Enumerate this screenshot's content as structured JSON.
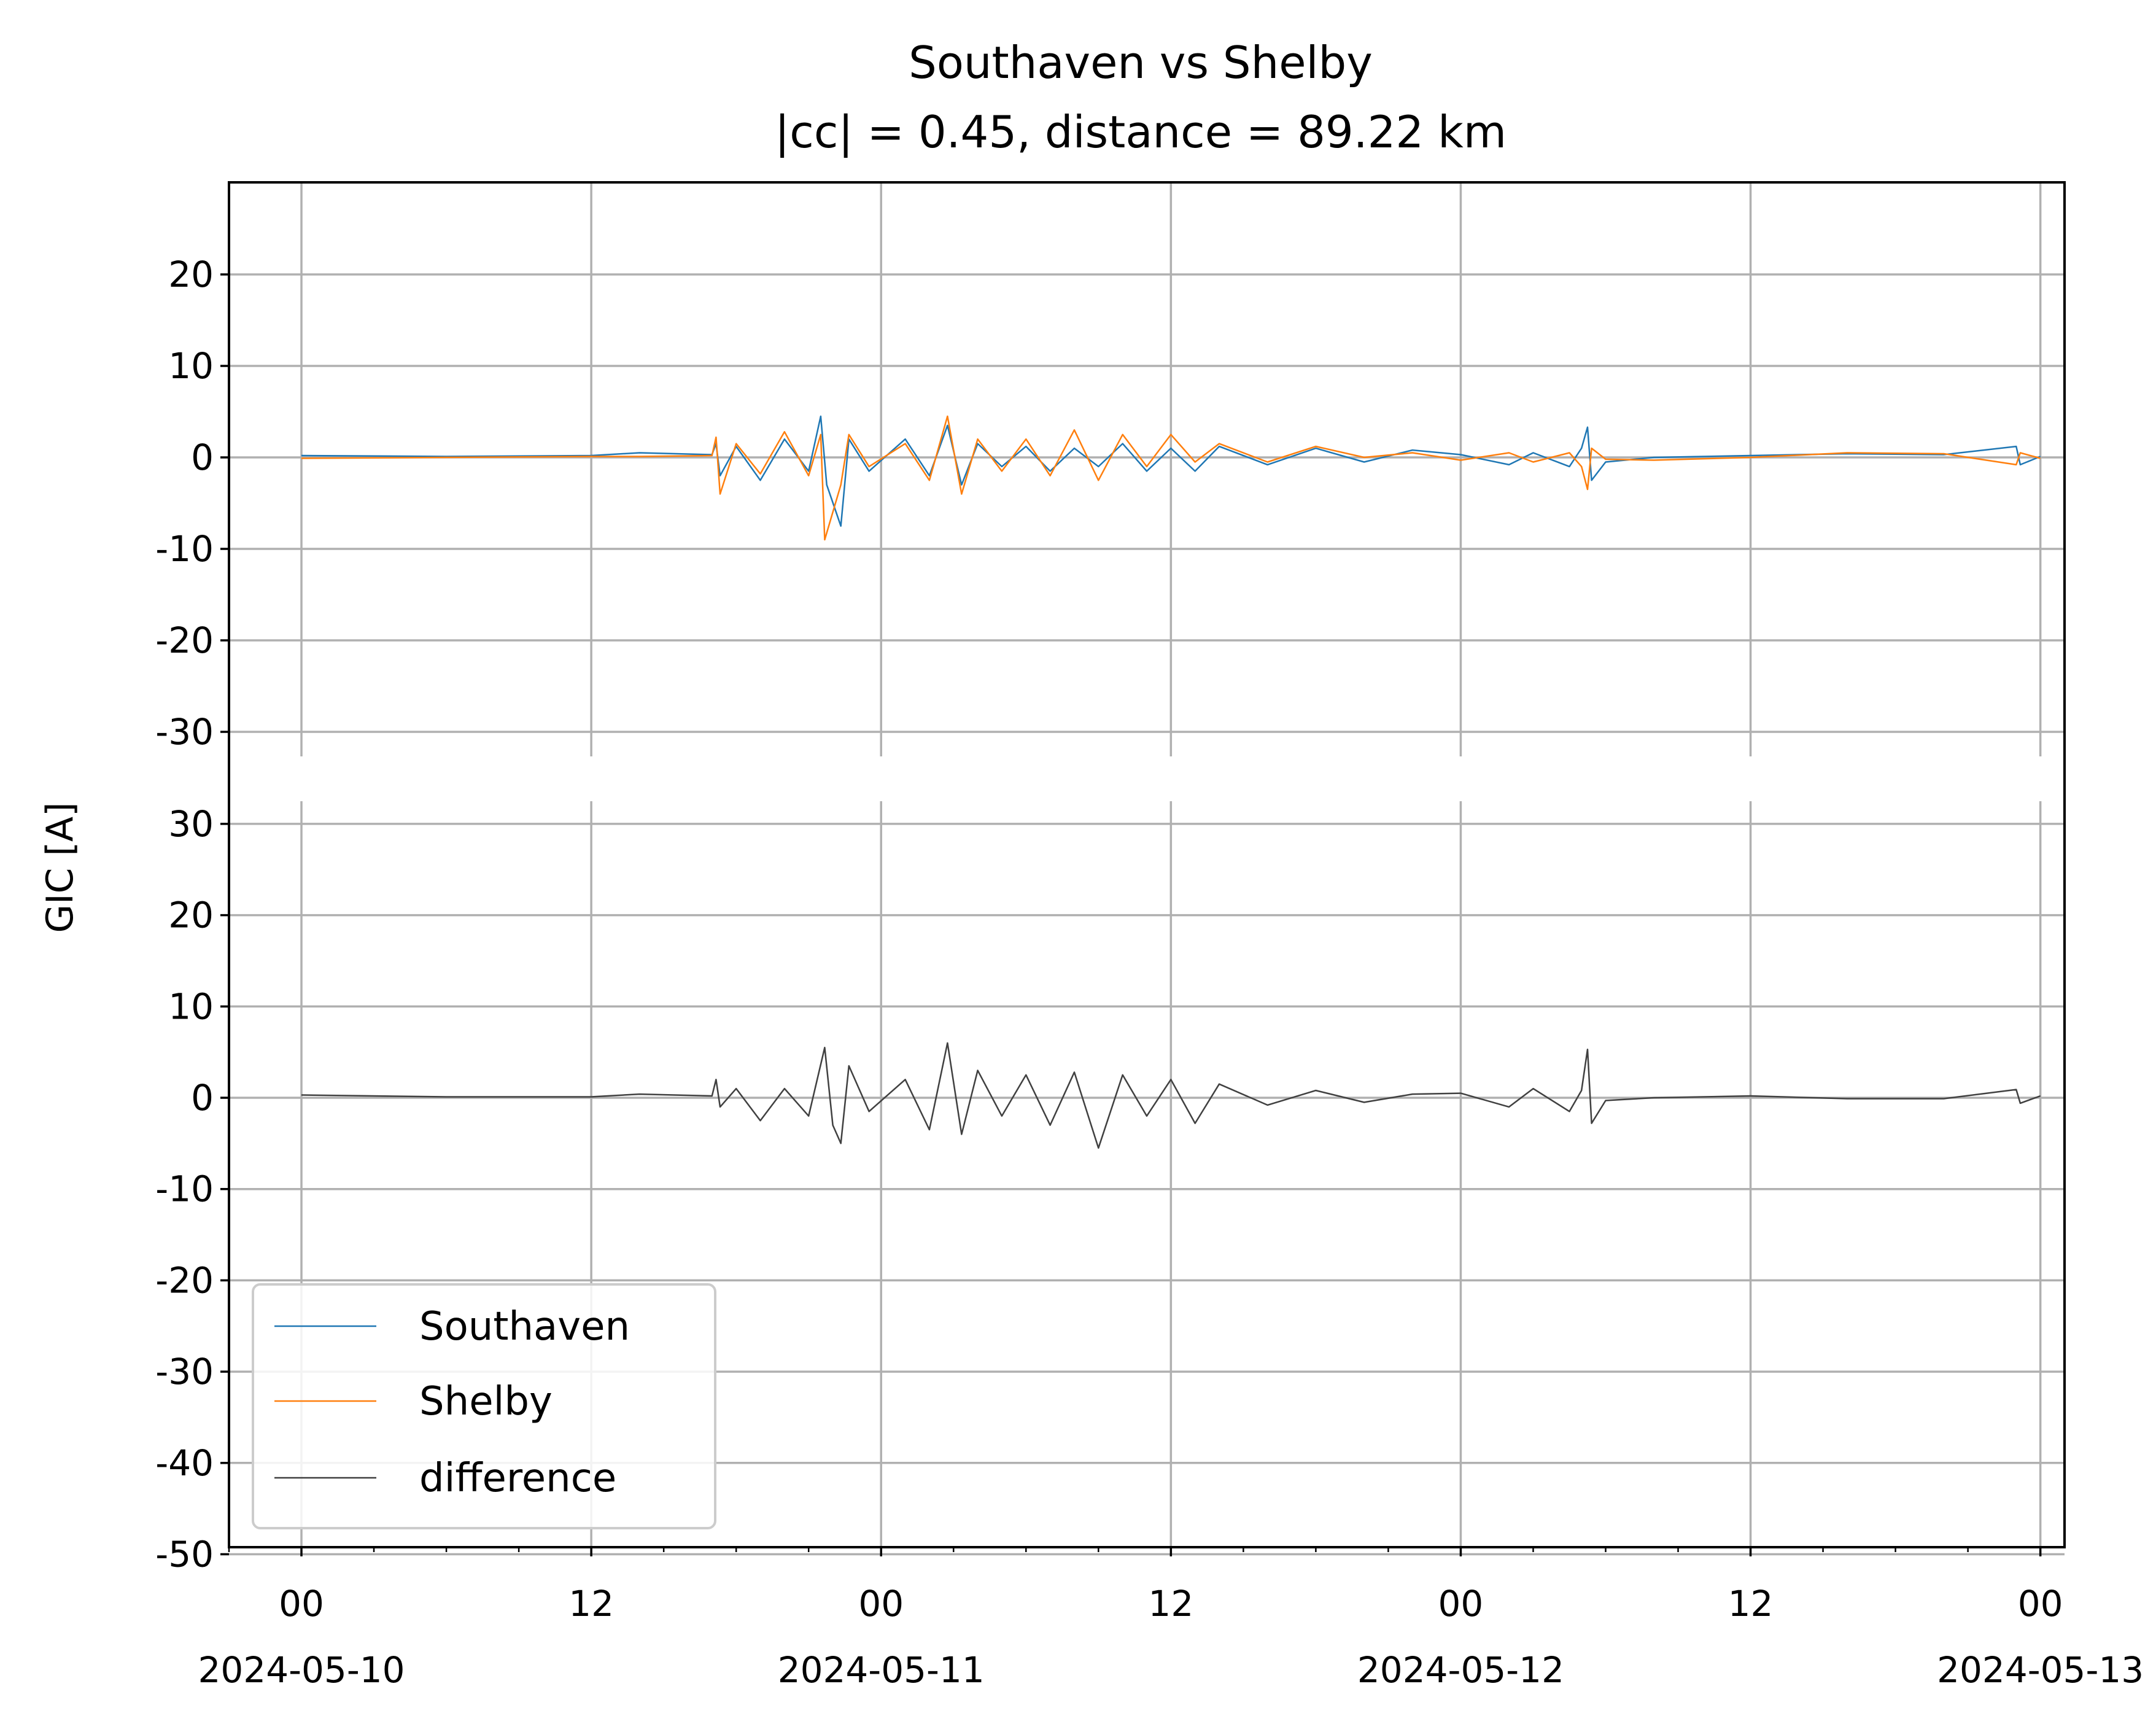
{
  "chart_data": {
    "type": "line",
    "title": "Southaven vs Shelby",
    "subtitle": "|cc| = 0.45, distance = 89.22 km",
    "ylabel": "GIC [A]",
    "xlabel": "",
    "grid": true,
    "legend_position": "lower-left",
    "x_range": [
      "2024-05-09T21:00",
      "2024-05-13T01:00"
    ],
    "x_ticks": [
      {
        "time": "2024-05-10T00:00",
        "label": "00",
        "date": "2024-05-10"
      },
      {
        "time": "2024-05-10T12:00",
        "label": "12",
        "date": ""
      },
      {
        "time": "2024-05-11T00:00",
        "label": "00",
        "date": "2024-05-11"
      },
      {
        "time": "2024-05-11T12:00",
        "label": "12",
        "date": ""
      },
      {
        "time": "2024-05-12T00:00",
        "label": "00",
        "date": "2024-05-12"
      },
      {
        "time": "2024-05-12T12:00",
        "label": "12",
        "date": ""
      },
      {
        "time": "2024-05-13T00:00",
        "label": "00",
        "date": "2024-05-13"
      }
    ],
    "panels": [
      {
        "name": "top",
        "ylim": [
          -30,
          30
        ],
        "y_ticks": [
          20,
          10,
          0,
          -10,
          -20,
          -30
        ],
        "series": [
          {
            "name": "Southaven",
            "color": "#1f77b4",
            "points": [
              [
                "2024-05-10T00:00",
                0.2
              ],
              [
                "2024-05-10T06:00",
                0.1
              ],
              [
                "2024-05-10T12:00",
                0.2
              ],
              [
                "2024-05-10T14:00",
                0.5
              ],
              [
                "2024-05-10T17:00",
                0.3
              ],
              [
                "2024-05-10T17:10",
                1.5
              ],
              [
                "2024-05-10T17:20",
                -2.0
              ],
              [
                "2024-05-10T18:00",
                1.2
              ],
              [
                "2024-05-10T19:00",
                -2.5
              ],
              [
                "2024-05-10T20:00",
                2.0
              ],
              [
                "2024-05-10T21:00",
                -1.5
              ],
              [
                "2024-05-10T21:30",
                4.5
              ],
              [
                "2024-05-10T21:45",
                -3.0
              ],
              [
                "2024-05-10T22:20",
                -7.5
              ],
              [
                "2024-05-10T22:40",
                2.0
              ],
              [
                "2024-05-10T23:30",
                -1.5
              ],
              [
                "2024-05-11T01:00",
                2.0
              ],
              [
                "2024-05-11T02:00",
                -2.0
              ],
              [
                "2024-05-11T02:45",
                3.5
              ],
              [
                "2024-05-11T03:20",
                -3.0
              ],
              [
                "2024-05-11T04:00",
                1.5
              ],
              [
                "2024-05-11T05:00",
                -1.0
              ],
              [
                "2024-05-11T06:00",
                1.2
              ],
              [
                "2024-05-11T07:00",
                -1.5
              ],
              [
                "2024-05-11T08:00",
                1.0
              ],
              [
                "2024-05-11T09:00",
                -1.0
              ],
              [
                "2024-05-11T10:00",
                1.5
              ],
              [
                "2024-05-11T11:00",
                -1.5
              ],
              [
                "2024-05-11T12:00",
                1.0
              ],
              [
                "2024-05-11T13:00",
                -1.5
              ],
              [
                "2024-05-11T14:00",
                1.2
              ],
              [
                "2024-05-11T16:00",
                -0.8
              ],
              [
                "2024-05-11T18:00",
                1.0
              ],
              [
                "2024-05-11T20:00",
                -0.5
              ],
              [
                "2024-05-11T22:00",
                0.8
              ],
              [
                "2024-05-12T00:00",
                0.3
              ],
              [
                "2024-05-12T02:00",
                -0.8
              ],
              [
                "2024-05-12T03:00",
                0.5
              ],
              [
                "2024-05-12T04:30",
                -1.0
              ],
              [
                "2024-05-12T05:00",
                1.0
              ],
              [
                "2024-05-12T05:15",
                3.3
              ],
              [
                "2024-05-12T05:25",
                -2.5
              ],
              [
                "2024-05-12T06:00",
                -0.5
              ],
              [
                "2024-05-12T08:00",
                0.0
              ],
              [
                "2024-05-12T12:00",
                0.2
              ],
              [
                "2024-05-12T16:00",
                0.4
              ],
              [
                "2024-05-12T20:00",
                0.3
              ],
              [
                "2024-05-12T23:00",
                1.2
              ],
              [
                "2024-05-12T23:10",
                -0.8
              ],
              [
                "2024-05-13T00:00",
                0.1
              ]
            ]
          },
          {
            "name": "Shelby",
            "color": "#ff7f0e",
            "points": [
              [
                "2024-05-10T00:00",
                -0.1
              ],
              [
                "2024-05-10T06:00",
                0.0
              ],
              [
                "2024-05-10T12:00",
                0.1
              ],
              [
                "2024-05-10T14:00",
                0.1
              ],
              [
                "2024-05-10T17:00",
                0.2
              ],
              [
                "2024-05-10T17:10",
                2.2
              ],
              [
                "2024-05-10T17:20",
                -4.0
              ],
              [
                "2024-05-10T18:00",
                1.5
              ],
              [
                "2024-05-10T19:00",
                -1.8
              ],
              [
                "2024-05-10T20:00",
                2.8
              ],
              [
                "2024-05-10T21:00",
                -2.0
              ],
              [
                "2024-05-10T21:30",
                2.5
              ],
              [
                "2024-05-10T21:40",
                -9.0
              ],
              [
                "2024-05-10T22:20",
                -3.0
              ],
              [
                "2024-05-10T22:40",
                2.5
              ],
              [
                "2024-05-10T23:30",
                -1.0
              ],
              [
                "2024-05-11T01:00",
                1.5
              ],
              [
                "2024-05-11T02:00",
                -2.5
              ],
              [
                "2024-05-11T02:45",
                4.5
              ],
              [
                "2024-05-11T03:20",
                -4.0
              ],
              [
                "2024-05-11T04:00",
                2.0
              ],
              [
                "2024-05-11T05:00",
                -1.5
              ],
              [
                "2024-05-11T06:00",
                2.0
              ],
              [
                "2024-05-11T07:00",
                -2.0
              ],
              [
                "2024-05-11T08:00",
                3.0
              ],
              [
                "2024-05-11T09:00",
                -2.5
              ],
              [
                "2024-05-11T10:00",
                2.5
              ],
              [
                "2024-05-11T11:00",
                -1.0
              ],
              [
                "2024-05-11T12:00",
                2.5
              ],
              [
                "2024-05-11T13:00",
                -0.5
              ],
              [
                "2024-05-11T14:00",
                1.5
              ],
              [
                "2024-05-11T16:00",
                -0.5
              ],
              [
                "2024-05-11T18:00",
                1.2
              ],
              [
                "2024-05-11T20:00",
                0.0
              ],
              [
                "2024-05-11T22:00",
                0.5
              ],
              [
                "2024-05-12T00:00",
                -0.3
              ],
              [
                "2024-05-12T02:00",
                0.5
              ],
              [
                "2024-05-12T03:00",
                -0.5
              ],
              [
                "2024-05-12T04:30",
                0.5
              ],
              [
                "2024-05-12T05:00",
                -1.0
              ],
              [
                "2024-05-12T05:15",
                -3.5
              ],
              [
                "2024-05-12T05:25",
                1.0
              ],
              [
                "2024-05-12T06:00",
                -0.2
              ],
              [
                "2024-05-12T08:00",
                -0.3
              ],
              [
                "2024-05-12T12:00",
                0.0
              ],
              [
                "2024-05-12T16:00",
                0.5
              ],
              [
                "2024-05-12T20:00",
                0.4
              ],
              [
                "2024-05-12T23:00",
                -0.8
              ],
              [
                "2024-05-12T23:10",
                0.5
              ],
              [
                "2024-05-13T00:00",
                -0.1
              ]
            ]
          }
        ]
      },
      {
        "name": "bottom",
        "ylim": [
          -50,
          32
        ],
        "y_ticks": [
          30,
          20,
          10,
          0,
          -10,
          -20,
          -30,
          -40,
          -50
        ],
        "series": [
          {
            "name": "difference",
            "color": "#404040",
            "points": [
              [
                "2024-05-10T00:00",
                0.3
              ],
              [
                "2024-05-10T06:00",
                0.1
              ],
              [
                "2024-05-10T12:00",
                0.1
              ],
              [
                "2024-05-10T14:00",
                0.4
              ],
              [
                "2024-05-10T17:00",
                0.2
              ],
              [
                "2024-05-10T17:10",
                2.0
              ],
              [
                "2024-05-10T17:20",
                -1.0
              ],
              [
                "2024-05-10T18:00",
                1.0
              ],
              [
                "2024-05-10T19:00",
                -2.5
              ],
              [
                "2024-05-10T20:00",
                1.0
              ],
              [
                "2024-05-10T21:00",
                -2.0
              ],
              [
                "2024-05-10T21:40",
                5.5
              ],
              [
                "2024-05-10T22:00",
                -3.0
              ],
              [
                "2024-05-10T22:20",
                -5.0
              ],
              [
                "2024-05-10T22:40",
                3.5
              ],
              [
                "2024-05-10T23:30",
                -1.5
              ],
              [
                "2024-05-11T01:00",
                2.0
              ],
              [
                "2024-05-11T02:00",
                -3.5
              ],
              [
                "2024-05-11T02:45",
                6.0
              ],
              [
                "2024-05-11T03:20",
                -4.0
              ],
              [
                "2024-05-11T04:00",
                3.0
              ],
              [
                "2024-05-11T05:00",
                -2.0
              ],
              [
                "2024-05-11T06:00",
                2.5
              ],
              [
                "2024-05-11T07:00",
                -3.0
              ],
              [
                "2024-05-11T08:00",
                2.8
              ],
              [
                "2024-05-11T09:00",
                -5.5
              ],
              [
                "2024-05-11T10:00",
                2.5
              ],
              [
                "2024-05-11T11:00",
                -2.0
              ],
              [
                "2024-05-11T12:00",
                2.0
              ],
              [
                "2024-05-11T13:00",
                -2.8
              ],
              [
                "2024-05-11T14:00",
                1.5
              ],
              [
                "2024-05-11T16:00",
                -0.8
              ],
              [
                "2024-05-11T18:00",
                0.8
              ],
              [
                "2024-05-11T20:00",
                -0.5
              ],
              [
                "2024-05-11T22:00",
                0.4
              ],
              [
                "2024-05-12T00:00",
                0.5
              ],
              [
                "2024-05-12T02:00",
                -1.0
              ],
              [
                "2024-05-12T03:00",
                1.0
              ],
              [
                "2024-05-12T04:30",
                -1.5
              ],
              [
                "2024-05-12T05:00",
                0.8
              ],
              [
                "2024-05-12T05:15",
                5.3
              ],
              [
                "2024-05-12T05:25",
                -2.8
              ],
              [
                "2024-05-12T06:00",
                -0.3
              ],
              [
                "2024-05-12T08:00",
                0.0
              ],
              [
                "2024-05-12T12:00",
                0.2
              ],
              [
                "2024-05-12T16:00",
                -0.1
              ],
              [
                "2024-05-12T20:00",
                -0.1
              ],
              [
                "2024-05-12T23:00",
                0.9
              ],
              [
                "2024-05-12T23:10",
                -0.6
              ],
              [
                "2024-05-13T00:00",
                0.2
              ]
            ]
          }
        ]
      }
    ],
    "legend": [
      {
        "label": "Southaven",
        "color": "#1f77b4"
      },
      {
        "label": "Shelby",
        "color": "#ff7f0e"
      },
      {
        "label": "difference",
        "color": "#404040"
      }
    ]
  }
}
